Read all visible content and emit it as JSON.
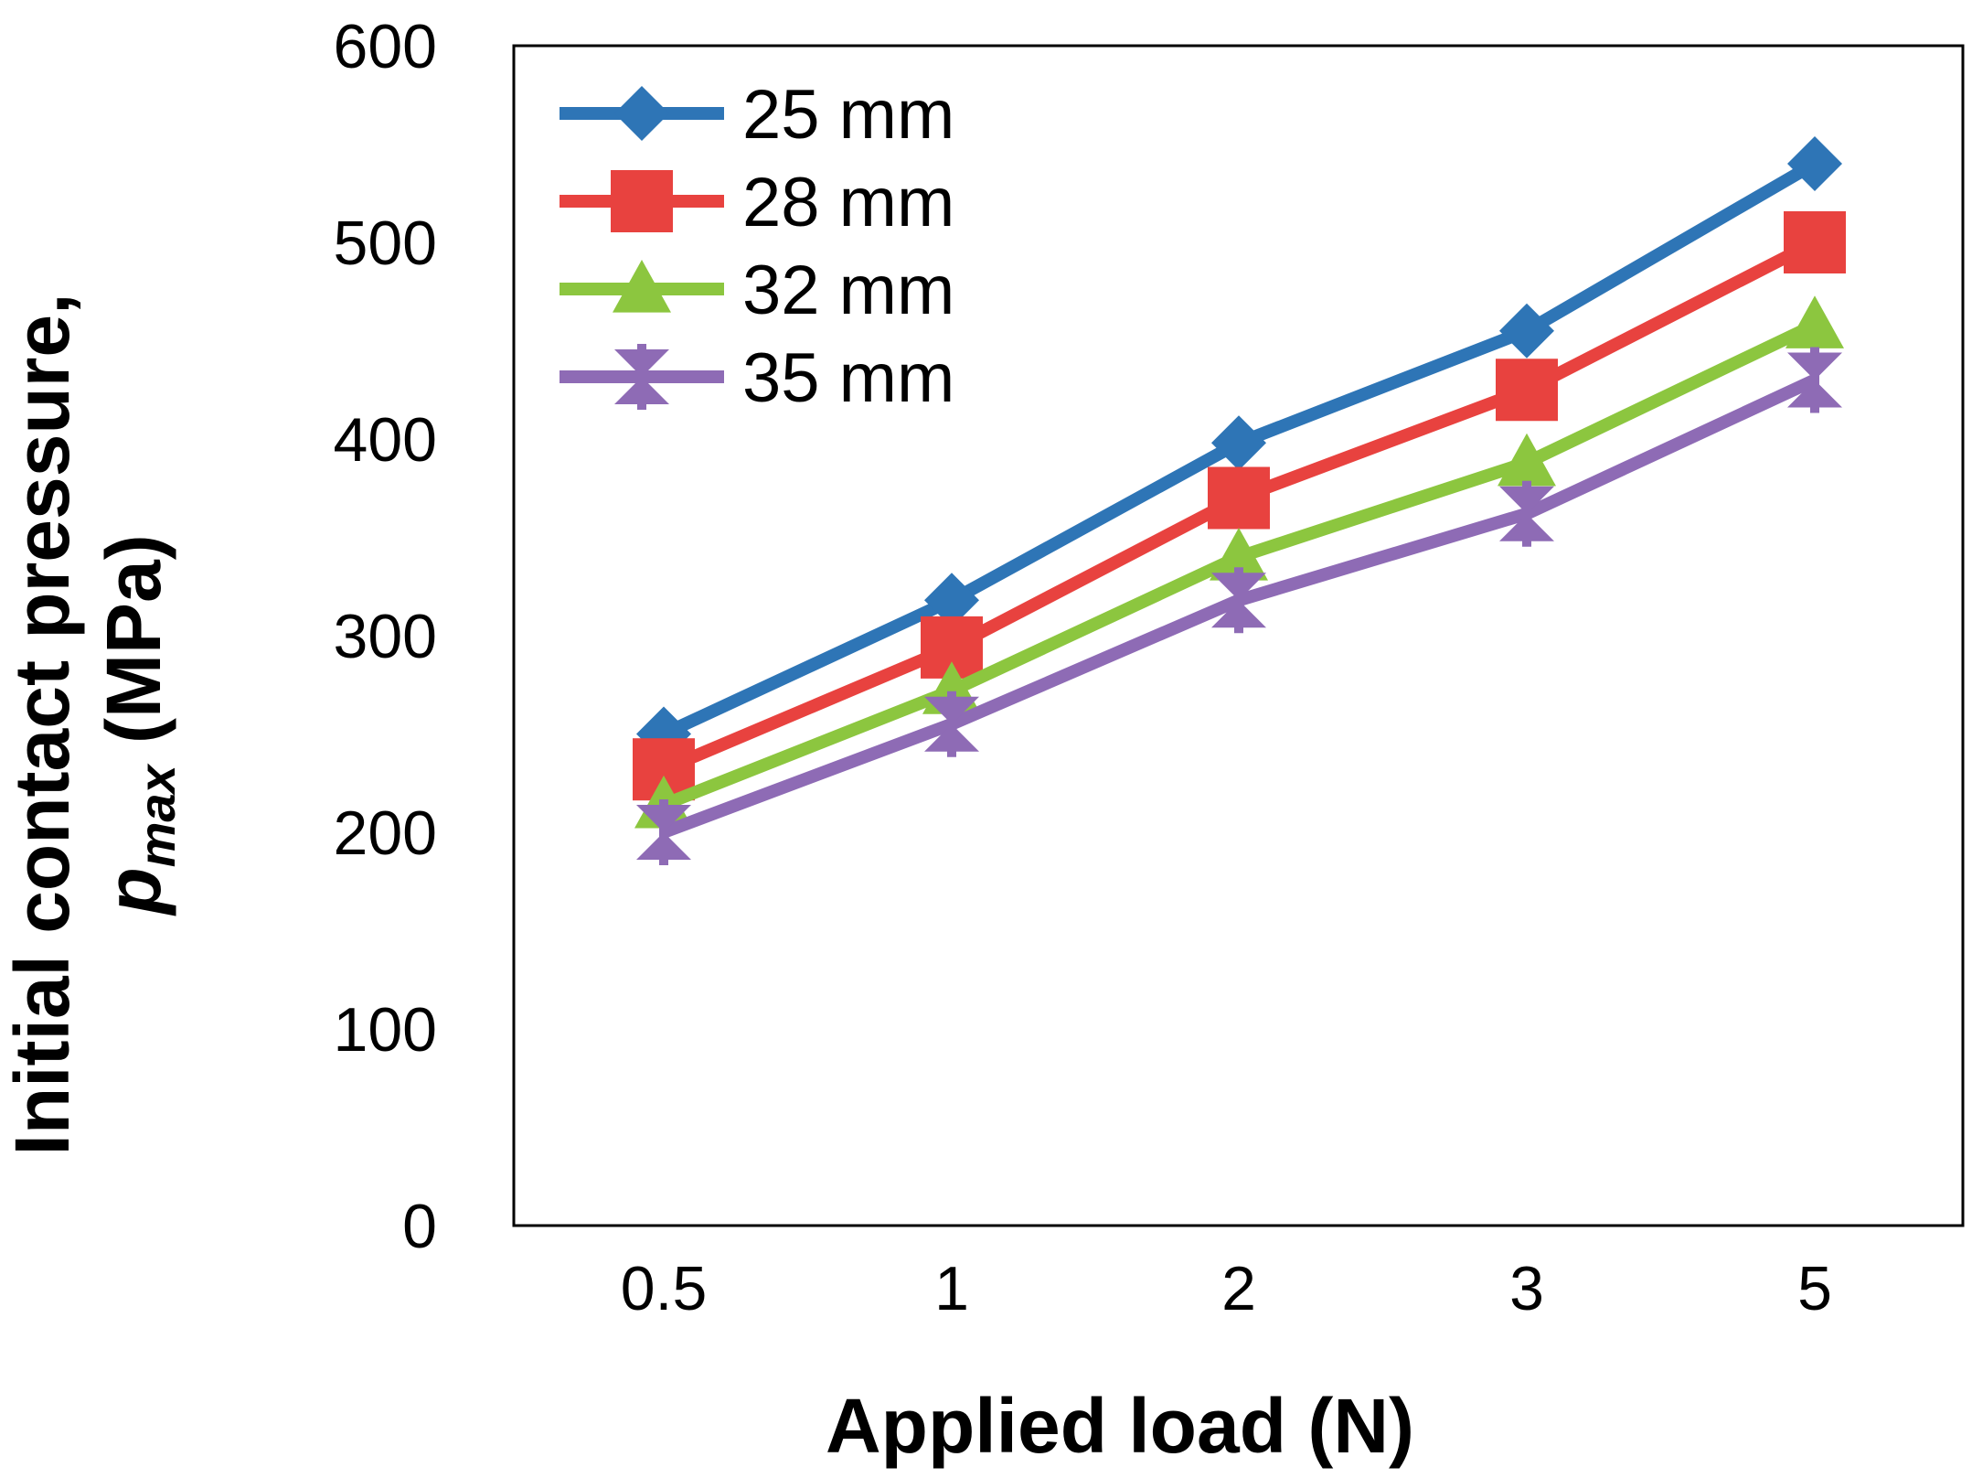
{
  "chart_data": {
    "type": "line",
    "title": "",
    "xlabel": "Applied load (N)",
    "ylabel_line1": "Initial contact pressure,",
    "ylabel_p": "p",
    "ylabel_sub": "max",
    "ylabel_unit": " (MPa)",
    "categories": [
      "0.5",
      "1",
      "2",
      "3",
      "5"
    ],
    "ylim": [
      0,
      600
    ],
    "yticks": [
      "0",
      "100",
      "200",
      "300",
      "400",
      "500",
      "600"
    ],
    "grid": false,
    "legend_position": "top-left",
    "series": [
      {
        "name": "25 mm",
        "color": "#2E75B6",
        "marker": "diamond",
        "values": [
          250,
          318,
          398,
          455,
          540
        ]
      },
      {
        "name": "28 mm",
        "color": "#E8423F",
        "marker": "square",
        "values": [
          232,
          294,
          370,
          425,
          500
        ]
      },
      {
        "name": "32 mm",
        "color": "#8CC63F",
        "marker": "triangle",
        "values": [
          214,
          272,
          340,
          388,
          458
        ]
      },
      {
        "name": "35 mm",
        "color": "#8E6BB5",
        "marker": "star",
        "values": [
          200,
          255,
          318,
          362,
          430
        ]
      }
    ]
  }
}
